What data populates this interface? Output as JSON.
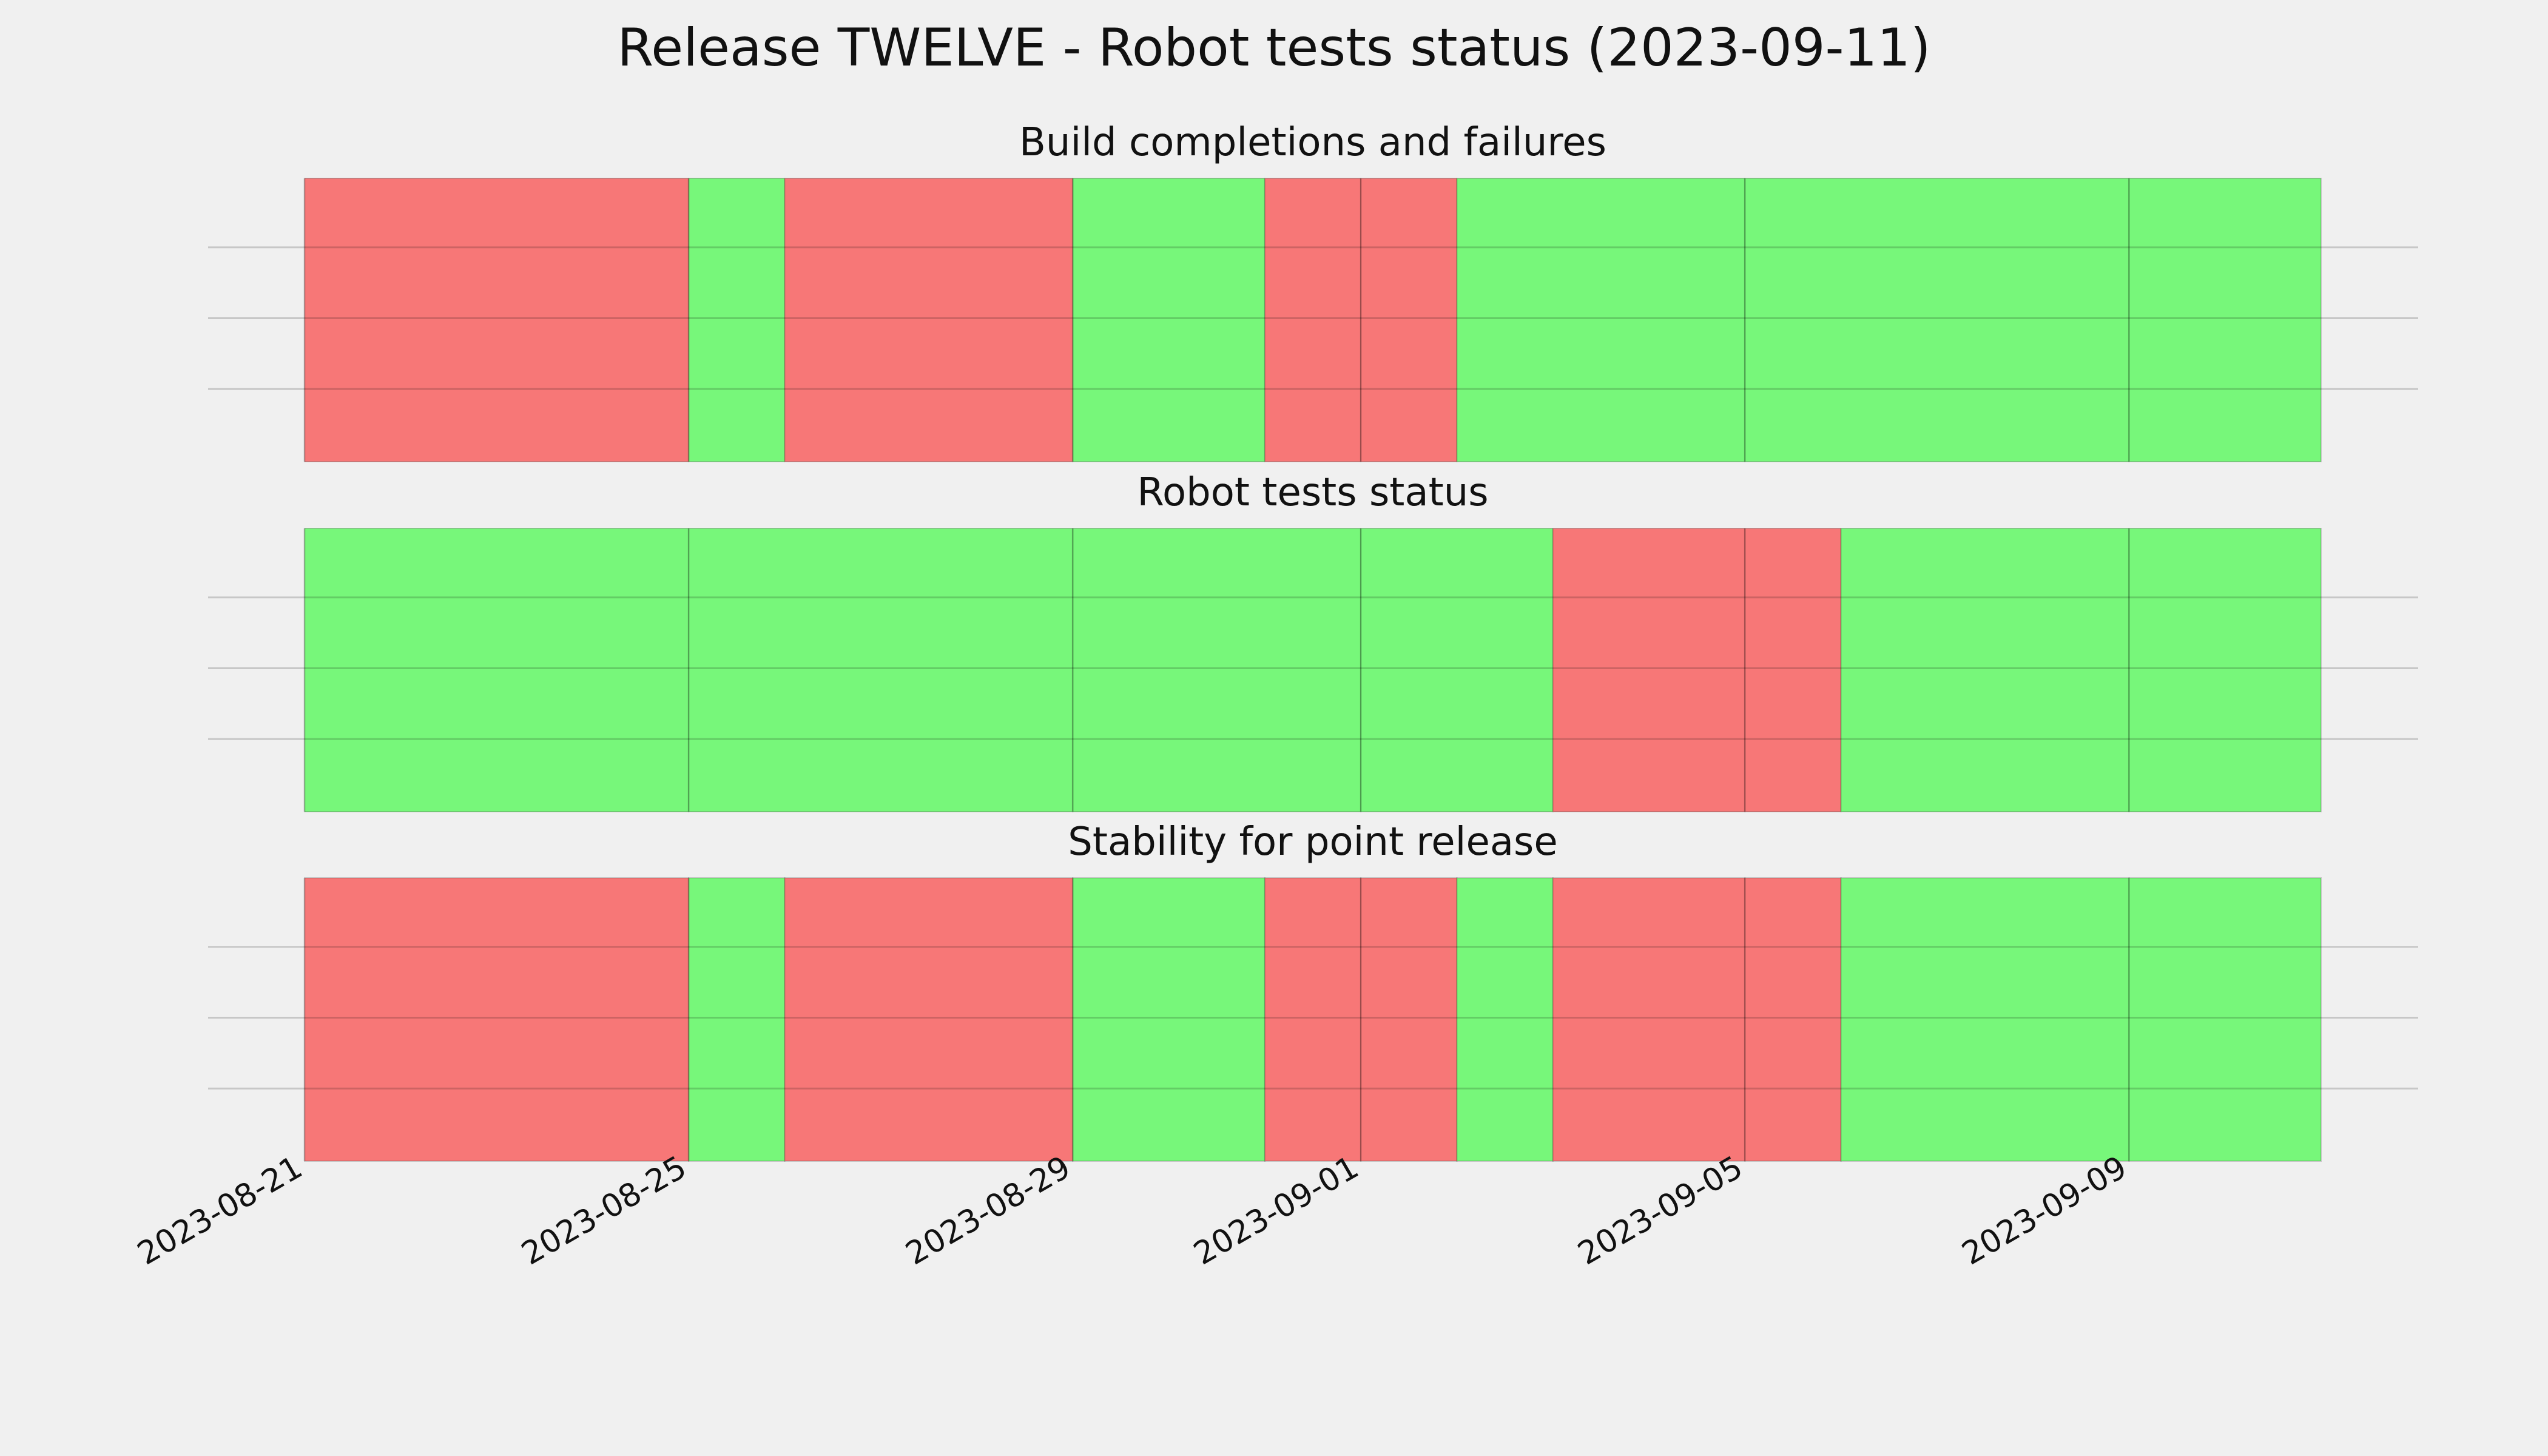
{
  "chart_data": {
    "type": "timeline",
    "title": "Release TWELVE - Robot tests status (2023-09-11)",
    "x_axis": {
      "type": "date",
      "range": [
        "2023-08-21",
        "2023-09-11"
      ],
      "ticks": [
        "2023-08-21",
        "2023-08-25",
        "2023-08-29",
        "2023-09-01",
        "2023-09-05",
        "2023-09-09"
      ],
      "tick_label_rotation": 30
    },
    "colors": {
      "pass": "#77f77a",
      "fail": "#f77777"
    },
    "legend": null,
    "panels": [
      {
        "title": "Build completions and failures",
        "segments": [
          {
            "start": "2023-08-21",
            "end": "2023-08-25",
            "status": "fail"
          },
          {
            "start": "2023-08-25",
            "end": "2023-08-26",
            "status": "pass"
          },
          {
            "start": "2023-08-26",
            "end": "2023-08-29",
            "status": "fail"
          },
          {
            "start": "2023-08-29",
            "end": "2023-08-31",
            "status": "pass"
          },
          {
            "start": "2023-08-31",
            "end": "2023-09-01",
            "status": "fail"
          },
          {
            "start": "2023-09-01",
            "end": "2023-09-02",
            "status": "fail"
          },
          {
            "start": "2023-09-02",
            "end": "2023-09-05",
            "status": "pass"
          },
          {
            "start": "2023-09-05",
            "end": "2023-09-09",
            "status": "pass"
          },
          {
            "start": "2023-09-09",
            "end": "2023-09-11",
            "status": "pass"
          }
        ]
      },
      {
        "title": "Robot tests status",
        "segments": [
          {
            "start": "2023-08-21",
            "end": "2023-08-25",
            "status": "pass"
          },
          {
            "start": "2023-08-25",
            "end": "2023-08-29",
            "status": "pass"
          },
          {
            "start": "2023-08-29",
            "end": "2023-09-01",
            "status": "pass"
          },
          {
            "start": "2023-09-01",
            "end": "2023-09-03",
            "status": "pass"
          },
          {
            "start": "2023-09-03",
            "end": "2023-09-05",
            "status": "fail"
          },
          {
            "start": "2023-09-05",
            "end": "2023-09-06",
            "status": "fail"
          },
          {
            "start": "2023-09-06",
            "end": "2023-09-09",
            "status": "pass"
          },
          {
            "start": "2023-09-09",
            "end": "2023-09-11",
            "status": "pass"
          }
        ]
      },
      {
        "title": "Stability for point release",
        "segments": [
          {
            "start": "2023-08-21",
            "end": "2023-08-25",
            "status": "fail"
          },
          {
            "start": "2023-08-25",
            "end": "2023-08-26",
            "status": "pass"
          },
          {
            "start": "2023-08-26",
            "end": "2023-08-29",
            "status": "fail"
          },
          {
            "start": "2023-08-29",
            "end": "2023-08-31",
            "status": "pass"
          },
          {
            "start": "2023-08-31",
            "end": "2023-09-01",
            "status": "fail"
          },
          {
            "start": "2023-09-01",
            "end": "2023-09-02",
            "status": "fail"
          },
          {
            "start": "2023-09-02",
            "end": "2023-09-03",
            "status": "pass"
          },
          {
            "start": "2023-09-03",
            "end": "2023-09-05",
            "status": "fail"
          },
          {
            "start": "2023-09-05",
            "end": "2023-09-06",
            "status": "fail"
          },
          {
            "start": "2023-09-06",
            "end": "2023-09-09",
            "status": "pass"
          },
          {
            "start": "2023-09-09",
            "end": "2023-09-11",
            "status": "pass"
          }
        ]
      }
    ]
  }
}
